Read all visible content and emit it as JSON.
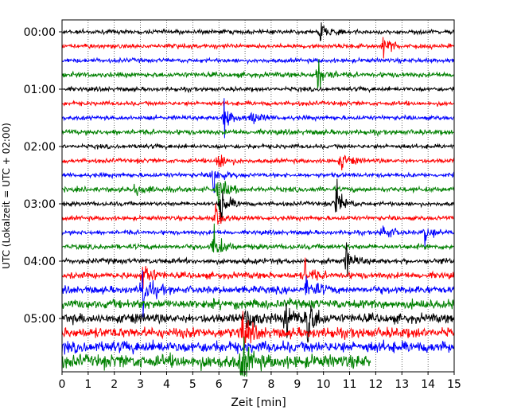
{
  "chart_data": {
    "type": "line",
    "title": "",
    "xlabel": "Zeit  [min]",
    "ylabel": "UTC (Lokalzeit = UTC + 02:00)",
    "xlim": [
      0,
      15
    ],
    "x_ticks": [
      "0",
      "1",
      "2",
      "3",
      "4",
      "5",
      "6",
      "7",
      "8",
      "9",
      "10",
      "11",
      "12",
      "13",
      "14",
      "15"
    ],
    "y_ticks": [
      "00:00",
      "01:00",
      "02:00",
      "03:00",
      "04:00",
      "05:00"
    ],
    "grid": "vertical dotted at each minute",
    "colors": [
      "#000000",
      "#ff0000",
      "#0000ff",
      "#008000"
    ],
    "trace_interval_min": 15,
    "n_traces": 24,
    "last_trace_end_min": 11.8,
    "events": [
      {
        "trace": 0,
        "x": 9.9,
        "amp": 0.9
      },
      {
        "trace": 1,
        "x": 12.3,
        "amp": 1.1
      },
      {
        "trace": 3,
        "x": 9.8,
        "amp": 1.3
      },
      {
        "trace": 6,
        "x": 6.2,
        "amp": 1.3
      },
      {
        "trace": 6,
        "x": 7.3,
        "amp": 0.8
      },
      {
        "trace": 9,
        "x": 6.0,
        "amp": 1.0
      },
      {
        "trace": 9,
        "x": 10.7,
        "amp": 0.8
      },
      {
        "trace": 10,
        "x": 5.8,
        "amp": 1.2
      },
      {
        "trace": 11,
        "x": 2.8,
        "amp": 0.8
      },
      {
        "trace": 11,
        "x": 6.0,
        "amp": 1.5
      },
      {
        "trace": 12,
        "x": 6.1,
        "amp": 1.6
      },
      {
        "trace": 12,
        "x": 10.5,
        "amp": 1.6
      },
      {
        "trace": 13,
        "x": 5.9,
        "amp": 1.0
      },
      {
        "trace": 14,
        "x": 12.3,
        "amp": 1.0
      },
      {
        "trace": 14,
        "x": 13.9,
        "amp": 0.8
      },
      {
        "trace": 15,
        "x": 5.8,
        "amp": 1.7
      },
      {
        "trace": 16,
        "x": 10.9,
        "amp": 1.2
      },
      {
        "trace": 17,
        "x": 3.1,
        "amp": 1.7
      },
      {
        "trace": 17,
        "x": 9.3,
        "amp": 1.0
      },
      {
        "trace": 18,
        "x": 3.1,
        "amp": 2.2
      },
      {
        "trace": 18,
        "x": 9.4,
        "amp": 1.4
      },
      {
        "trace": 20,
        "x": 7.1,
        "amp": 1.5
      },
      {
        "trace": 20,
        "x": 8.6,
        "amp": 1.8
      },
      {
        "trace": 20,
        "x": 9.4,
        "amp": 2.4
      },
      {
        "trace": 21,
        "x": 6.9,
        "amp": 1.6
      },
      {
        "trace": 23,
        "x": 6.9,
        "amp": 2.0
      }
    ]
  }
}
